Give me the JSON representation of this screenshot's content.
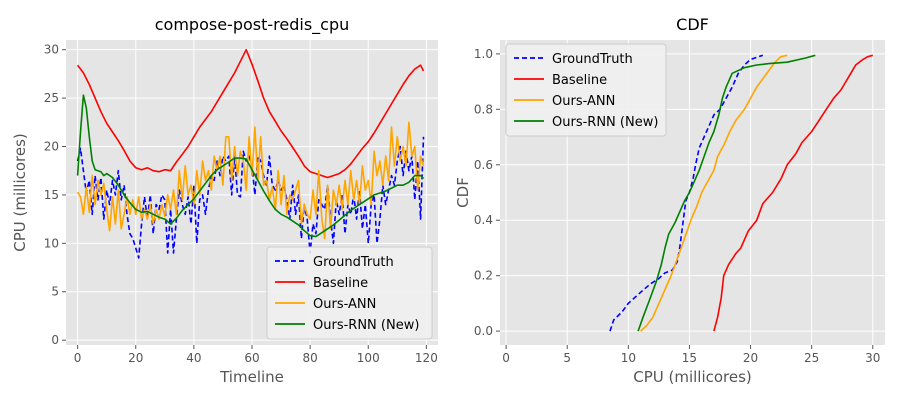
{
  "chart_data": [
    {
      "type": "line",
      "title": "compose-post-redis_cpu",
      "xlabel": "Timeline",
      "ylabel": "CPU (millicores)",
      "xlim": [
        -4,
        124
      ],
      "ylim": [
        -0.5,
        31
      ],
      "xticks": [
        0,
        20,
        40,
        60,
        80,
        100,
        120
      ],
      "yticks": [
        0,
        5,
        10,
        15,
        20,
        25,
        30
      ],
      "grid": true,
      "legend_position": "lower-right",
      "series": [
        {
          "name": "GroundTruth",
          "color": "#0000ff",
          "dash": "dashed",
          "x": [
            0,
            1,
            2,
            3,
            4,
            5,
            6,
            7,
            8,
            9,
            10,
            11,
            12,
            13,
            14,
            15,
            16,
            17,
            18,
            19,
            20,
            21,
            22,
            23,
            24,
            25,
            26,
            27,
            28,
            29,
            30,
            31,
            32,
            33,
            34,
            35,
            36,
            37,
            38,
            39,
            40,
            41,
            42,
            43,
            44,
            45,
            46,
            47,
            48,
            49,
            50,
            51,
            52,
            53,
            54,
            55,
            56,
            57,
            58,
            59,
            60,
            61,
            62,
            63,
            64,
            65,
            66,
            67,
            68,
            69,
            70,
            71,
            72,
            73,
            74,
            75,
            76,
            77,
            78,
            79,
            80,
            81,
            82,
            83,
            84,
            85,
            86,
            87,
            88,
            89,
            90,
            91,
            92,
            93,
            94,
            95,
            96,
            97,
            98,
            99,
            100,
            101,
            102,
            103,
            104,
            105,
            106,
            107,
            108,
            109,
            110,
            111,
            112,
            113,
            114,
            115,
            116,
            117,
            118,
            119
          ],
          "y": [
            18.5,
            19.8,
            17.5,
            15.2,
            16.5,
            13.0,
            17.0,
            14.5,
            16.8,
            12.5,
            15.5,
            14.0,
            16.5,
            15.0,
            17.5,
            14.5,
            16.0,
            13.0,
            11.0,
            10.5,
            9.5,
            8.5,
            12.0,
            14.8,
            12.5,
            15.0,
            11.0,
            14.0,
            13.5,
            15.0,
            14.5,
            9.0,
            13.5,
            9.0,
            12.5,
            15.5,
            14.0,
            13.0,
            14.8,
            12.0,
            16.0,
            10.0,
            14.5,
            15.0,
            13.0,
            15.5,
            17.0,
            16.5,
            18.5,
            17.0,
            19.0,
            18.5,
            19.0,
            15.0,
            19.0,
            15.0,
            14.8,
            19.5,
            18.5,
            19.0,
            18.0,
            15.0,
            19.0,
            18.5,
            17.0,
            16.0,
            19.0,
            16.0,
            15.5,
            16.5,
            15.5,
            16.0,
            14.5,
            12.5,
            16.0,
            13.0,
            15.0,
            10.5,
            14.0,
            12.5,
            9.0,
            12.0,
            11.0,
            14.5,
            14.0,
            13.5,
            16.0,
            12.5,
            10.0,
            14.5,
            13.0,
            15.0,
            11.0,
            14.0,
            13.0,
            15.0,
            12.5,
            15.5,
            11.5,
            14.0,
            10.0,
            14.0,
            15.0,
            10.0,
            12.5,
            16.0,
            14.0,
            15.5,
            17.0,
            16.0,
            18.5,
            20.0,
            17.0,
            19.5,
            17.5,
            19.0,
            14.5,
            18.5,
            12.5,
            21.0
          ]
        },
        {
          "name": "Baseline",
          "color": "#ff0000",
          "dash": "solid",
          "x": [
            0,
            2,
            4,
            6,
            8,
            10,
            12,
            14,
            16,
            18,
            20,
            22,
            24,
            26,
            28,
            30,
            32,
            34,
            36,
            38,
            40,
            42,
            44,
            46,
            48,
            50,
            52,
            54,
            56,
            58,
            60,
            62,
            64,
            66,
            68,
            70,
            72,
            74,
            76,
            78,
            80,
            82,
            84,
            86,
            88,
            90,
            92,
            94,
            96,
            98,
            100,
            102,
            104,
            106,
            108,
            110,
            112,
            114,
            116,
            118,
            119
          ],
          "y": [
            28.4,
            27.6,
            26.4,
            25.0,
            23.6,
            22.4,
            21.5,
            20.6,
            19.6,
            18.5,
            17.8,
            17.6,
            17.8,
            17.5,
            17.4,
            17.6,
            17.5,
            18.4,
            19.2,
            20.0,
            21.0,
            22.0,
            22.8,
            23.6,
            24.6,
            25.6,
            26.6,
            27.6,
            28.8,
            30.0,
            28.5,
            26.8,
            25.0,
            23.6,
            22.6,
            21.6,
            20.8,
            19.9,
            19.0,
            18.0,
            17.4,
            17.2,
            17.0,
            16.8,
            17.0,
            17.2,
            17.6,
            18.2,
            19.0,
            19.8,
            20.5,
            21.4,
            22.4,
            23.4,
            24.4,
            25.4,
            26.4,
            27.3,
            28.0,
            28.4,
            27.8
          ]
        },
        {
          "name": "Ours-ANN",
          "color": "#ffa500",
          "dash": "solid",
          "x": [
            0,
            1,
            2,
            3,
            4,
            5,
            6,
            7,
            8,
            9,
            10,
            11,
            12,
            13,
            14,
            15,
            16,
            17,
            18,
            19,
            20,
            21,
            22,
            23,
            24,
            25,
            26,
            27,
            28,
            29,
            30,
            31,
            32,
            33,
            34,
            35,
            36,
            37,
            38,
            39,
            40,
            41,
            42,
            43,
            44,
            45,
            46,
            47,
            48,
            49,
            50,
            51,
            52,
            53,
            54,
            55,
            56,
            57,
            58,
            59,
            60,
            61,
            62,
            63,
            64,
            65,
            66,
            67,
            68,
            69,
            70,
            71,
            72,
            73,
            74,
            75,
            76,
            77,
            78,
            79,
            80,
            81,
            82,
            83,
            84,
            85,
            86,
            87,
            88,
            89,
            90,
            91,
            92,
            93,
            94,
            95,
            96,
            97,
            98,
            99,
            100,
            101,
            102,
            103,
            104,
            105,
            106,
            107,
            108,
            109,
            110,
            111,
            112,
            113,
            114,
            115,
            116,
            117,
            118,
            119
          ],
          "y": [
            15.3,
            14.8,
            13.0,
            15.8,
            13.2,
            17.0,
            14.0,
            16.5,
            15.0,
            16.2,
            13.5,
            11.3,
            14.8,
            12.0,
            15.5,
            11.5,
            13.0,
            14.8,
            13.0,
            14.5,
            13.0,
            14.8,
            12.5,
            13.5,
            12.5,
            14.0,
            12.0,
            13.5,
            12.5,
            14.0,
            12.8,
            15.0,
            13.5,
            15.5,
            13.0,
            17.5,
            14.5,
            18.0,
            15.0,
            16.0,
            14.0,
            17.5,
            15.0,
            18.5,
            16.5,
            17.5,
            15.5,
            19.0,
            17.5,
            19.0,
            16.0,
            21.0,
            21.0,
            16.5,
            20.0,
            17.0,
            19.5,
            18.5,
            15.5,
            21.0,
            17.0,
            22.0,
            16.5,
            21.0,
            16.0,
            16.5,
            14.5,
            15.8,
            13.5,
            17.5,
            14.0,
            17.0,
            13.0,
            15.0,
            14.5,
            15.5,
            16.5,
            12.0,
            14.0,
            13.0,
            12.5,
            15.5,
            13.0,
            17.5,
            12.5,
            10.5,
            16.0,
            11.5,
            15.5,
            14.0,
            16.0,
            13.5,
            16.5,
            14.0,
            17.5,
            14.5,
            16.5,
            14.0,
            18.0,
            15.5,
            16.5,
            14.0,
            19.5,
            17.0,
            18.5,
            16.0,
            19.0,
            16.5,
            22.0,
            18.0,
            21.0,
            18.5,
            20.0,
            18.0,
            22.5,
            19.0,
            20.0,
            15.5,
            19.0,
            18.0
          ]
        },
        {
          "name": "Ours-RNN (New)",
          "color": "#008000",
          "dash": "solid",
          "x": [
            0,
            1,
            2,
            3,
            4,
            5,
            6,
            7,
            8,
            9,
            10,
            12,
            14,
            16,
            18,
            20,
            22,
            24,
            26,
            28,
            30,
            32,
            34,
            36,
            38,
            40,
            42,
            44,
            46,
            48,
            50,
            52,
            54,
            56,
            58,
            60,
            62,
            64,
            66,
            68,
            70,
            72,
            74,
            76,
            78,
            80,
            82,
            84,
            86,
            88,
            90,
            92,
            94,
            96,
            98,
            100,
            102,
            104,
            106,
            108,
            110,
            112,
            114,
            116,
            118,
            119
          ],
          "y": [
            17.0,
            21.5,
            25.3,
            24.0,
            21.0,
            18.5,
            17.6,
            17.5,
            17.4,
            17.0,
            17.2,
            16.8,
            16.0,
            15.0,
            14.2,
            13.5,
            13.2,
            13.3,
            13.0,
            12.7,
            12.5,
            12.0,
            12.6,
            13.4,
            14.0,
            14.6,
            15.4,
            16.2,
            17.0,
            17.6,
            18.0,
            18.4,
            18.8,
            18.8,
            18.7,
            17.6,
            16.5,
            15.4,
            14.4,
            13.5,
            13.0,
            12.7,
            12.3,
            11.9,
            11.3,
            10.8,
            10.7,
            11.1,
            11.5,
            11.9,
            12.4,
            12.9,
            13.4,
            13.8,
            14.2,
            14.6,
            15.0,
            15.2,
            15.4,
            15.7,
            16.0,
            16.0,
            16.3,
            17.0,
            17.0,
            16.7
          ]
        }
      ]
    },
    {
      "type": "line",
      "title": "CDF",
      "xlabel": "CPU (millicores)",
      "ylabel": "CDF",
      "xlim": [
        -0.5,
        31
      ],
      "ylim": [
        -0.05,
        1.05
      ],
      "xticks": [
        0,
        5,
        10,
        15,
        20,
        25,
        30
      ],
      "yticks": [
        0.0,
        0.2,
        0.4,
        0.6,
        0.8,
        1.0
      ],
      "grid": true,
      "legend_position": "upper-left",
      "series": [
        {
          "name": "GroundTruth",
          "color": "#0000ff",
          "dash": "dashed",
          "x": [
            8.5,
            8.8,
            9.5,
            10.0,
            10.5,
            11.0,
            11.8,
            12.5,
            13.0,
            13.6,
            14.0,
            14.2,
            14.5,
            14.7,
            15.0,
            15.3,
            15.5,
            15.8,
            16.2,
            16.5,
            17.0,
            17.5,
            18.0,
            18.5,
            19.0,
            19.5,
            20.0,
            21.0
          ],
          "y": [
            0.0,
            0.04,
            0.07,
            0.1,
            0.12,
            0.14,
            0.17,
            0.19,
            0.21,
            0.22,
            0.25,
            0.3,
            0.4,
            0.47,
            0.5,
            0.55,
            0.6,
            0.66,
            0.7,
            0.73,
            0.78,
            0.8,
            0.84,
            0.88,
            0.93,
            0.96,
            0.98,
            0.995
          ]
        },
        {
          "name": "Baseline",
          "color": "#ff0000",
          "dash": "solid",
          "x": [
            17.0,
            17.3,
            17.6,
            17.8,
            18.2,
            18.8,
            19.2,
            19.8,
            20.5,
            21.0,
            21.8,
            22.5,
            23.0,
            23.7,
            24.2,
            25.0,
            25.6,
            26.2,
            26.8,
            27.4,
            27.8,
            28.2,
            28.6,
            29.2,
            29.6,
            30.0
          ],
          "y": [
            0.0,
            0.05,
            0.12,
            0.2,
            0.24,
            0.28,
            0.3,
            0.36,
            0.4,
            0.46,
            0.5,
            0.55,
            0.6,
            0.64,
            0.68,
            0.72,
            0.76,
            0.8,
            0.84,
            0.87,
            0.9,
            0.93,
            0.96,
            0.98,
            0.99,
            0.995
          ]
        },
        {
          "name": "Ours-ANN",
          "color": "#ffa500",
          "dash": "solid",
          "x": [
            11.0,
            11.5,
            12.0,
            12.5,
            13.0,
            13.5,
            14.0,
            14.4,
            14.8,
            15.2,
            15.6,
            16.0,
            16.5,
            17.0,
            17.3,
            17.8,
            18.3,
            18.8,
            19.5,
            20.0,
            20.5,
            21.0,
            21.5,
            22.0,
            22.5,
            23.0
          ],
          "y": [
            0.0,
            0.02,
            0.05,
            0.1,
            0.15,
            0.2,
            0.26,
            0.31,
            0.36,
            0.41,
            0.45,
            0.5,
            0.54,
            0.58,
            0.63,
            0.67,
            0.72,
            0.76,
            0.8,
            0.84,
            0.88,
            0.91,
            0.94,
            0.97,
            0.99,
            0.995
          ]
        },
        {
          "name": "Ours-RNN (New)",
          "color": "#008000",
          "dash": "solid",
          "x": [
            10.8,
            11.2,
            11.8,
            12.3,
            12.7,
            13.0,
            13.3,
            13.8,
            14.2,
            14.6,
            15.0,
            15.4,
            15.8,
            16.2,
            16.6,
            17.0,
            17.4,
            17.7,
            18.0,
            18.5,
            19.5,
            20.5,
            21.5,
            23.0,
            24.5,
            25.3
          ],
          "y": [
            0.0,
            0.05,
            0.12,
            0.18,
            0.24,
            0.3,
            0.35,
            0.39,
            0.43,
            0.47,
            0.5,
            0.54,
            0.58,
            0.63,
            0.68,
            0.72,
            0.78,
            0.84,
            0.88,
            0.93,
            0.95,
            0.96,
            0.965,
            0.97,
            0.985,
            0.995
          ]
        }
      ]
    }
  ]
}
